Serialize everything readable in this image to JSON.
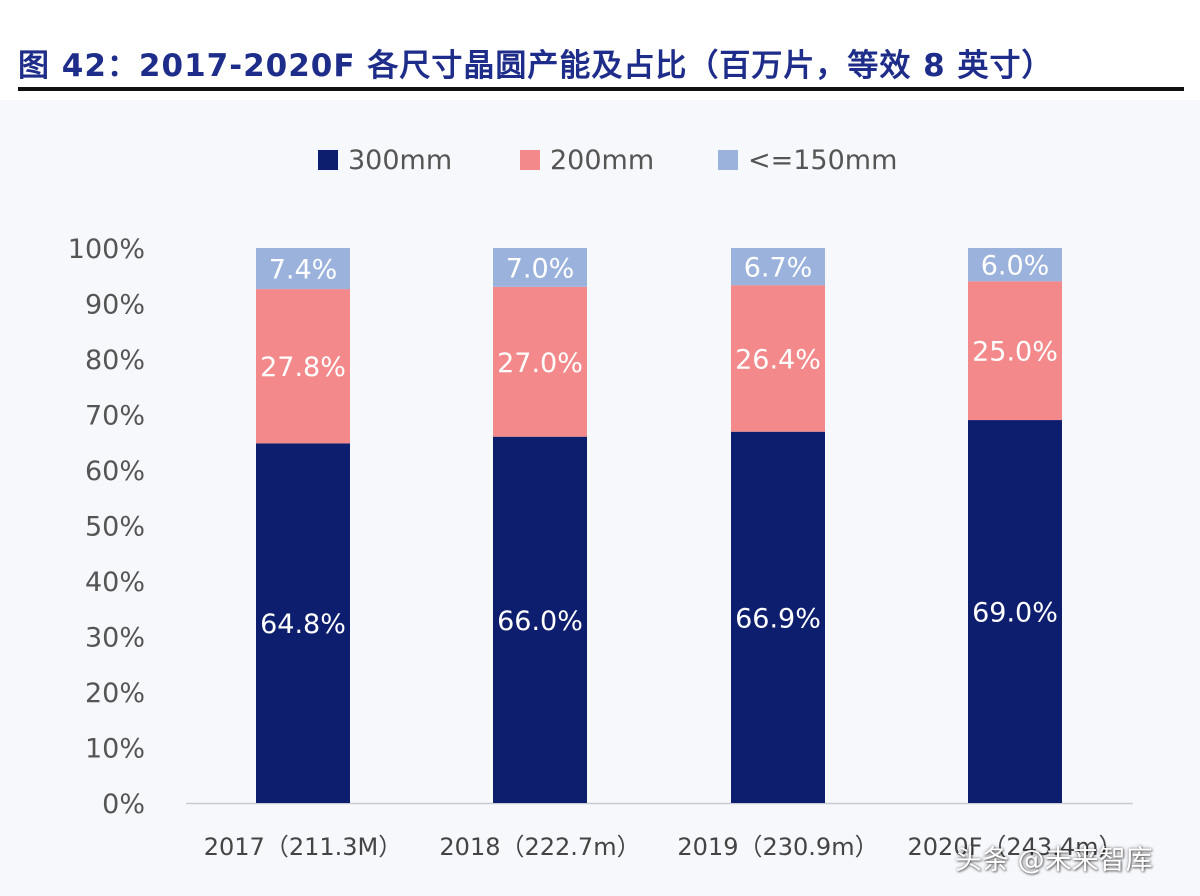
{
  "figure": {
    "title": "图 42：2017-2020F 各尺寸晶圆产能及占比（百万片，等效 8 英寸）"
  },
  "watermark": "头条 @未来智库",
  "chart_data": {
    "type": "bar",
    "stacked": true,
    "categories": [
      "2017（211.3M）",
      "2018（222.7m）",
      "2019（230.9m）",
      "2020F（243.4m）"
    ],
    "series": [
      {
        "name": "300mm",
        "values": [
          64.8,
          66.0,
          66.9,
          69.0
        ],
        "labels": [
          "64.8%",
          "66.0%",
          "66.9%",
          "69.0%"
        ],
        "color": "#0e1e6e"
      },
      {
        "name": "200mm",
        "values": [
          27.8,
          27.0,
          26.4,
          25.0
        ],
        "labels": [
          "27.8%",
          "27.0%",
          "26.4%",
          "25.0%"
        ],
        "color": "#f3898a"
      },
      {
        "name": "<=150mm",
        "values": [
          7.4,
          7.0,
          6.7,
          6.0
        ],
        "labels": [
          "7.4%",
          "7.0%",
          "6.7%",
          "6.0%"
        ],
        "color": "#9bb2dc"
      }
    ],
    "yticks": [
      "0%",
      "10%",
      "20%",
      "30%",
      "40%",
      "50%",
      "60%",
      "70%",
      "80%",
      "90%",
      "100%"
    ],
    "ylim": [
      0,
      100
    ],
    "legend_position": "top-center",
    "grid": false
  }
}
